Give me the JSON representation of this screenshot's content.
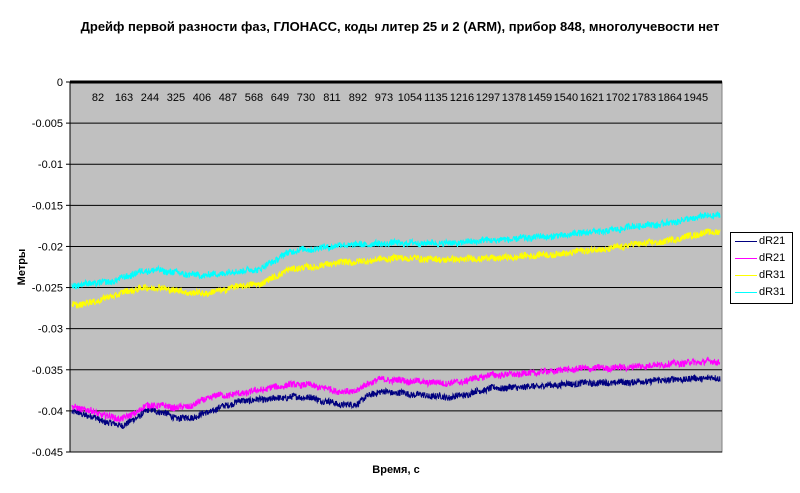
{
  "chart_data": {
    "type": "line",
    "title": "Дрейф первой разности фаз, ГЛОНАСС, коды литер 25 и 2 (ARM), прибор 848, многолучевости нет",
    "xlabel": "Время, с",
    "ylabel": "Метры",
    "ylim": [
      -0.045,
      0
    ],
    "yticks": [
      "0",
      "-0.005",
      "-0.01",
      "-0.015",
      "-0.02",
      "-0.025",
      "-0.03",
      "-0.035",
      "-0.04",
      "-0.045"
    ],
    "xticks": [
      "82",
      "163",
      "244",
      "325",
      "406",
      "487",
      "568",
      "649",
      "730",
      "811",
      "892",
      "973",
      "1054",
      "1135",
      "1216",
      "1297",
      "1378",
      "1459",
      "1540",
      "1621",
      "1702",
      "1783",
      "1864",
      "1945"
    ],
    "xlim": [
      1,
      2020
    ],
    "grid": "horizontal",
    "legend": "right",
    "background": "#c0c0c0",
    "series": [
      {
        "name": "dR21",
        "color": "#000080",
        "x": [
          1,
          156,
          249,
          341,
          558,
          712,
          867,
          959,
          1176,
          1330,
          1639,
          2020
        ],
        "values": [
          -0.0402,
          -0.0417,
          -0.0399,
          -0.0409,
          -0.0387,
          -0.0383,
          -0.0393,
          -0.0377,
          -0.0383,
          -0.0372,
          -0.0366,
          -0.036
        ]
      },
      {
        "name": "dR21",
        "color": "#ff00ff",
        "x": [
          1,
          156,
          249,
          341,
          465,
          712,
          867,
          959,
          1176,
          1330,
          1639,
          2020
        ],
        "values": [
          -0.0396,
          -0.0409,
          -0.0393,
          -0.0396,
          -0.0381,
          -0.0368,
          -0.0377,
          -0.0362,
          -0.0366,
          -0.0356,
          -0.0348,
          -0.034
        ]
      },
      {
        "name": "dR31",
        "color": "#ffff00",
        "x": [
          1,
          249,
          403,
          558,
          712,
          867,
          1021,
          1176,
          1330,
          1485,
          1639,
          1793,
          2020
        ],
        "values": [
          -0.0271,
          -0.025,
          -0.0257,
          -0.0247,
          -0.0226,
          -0.0219,
          -0.0214,
          -0.0216,
          -0.0214,
          -0.021,
          -0.0204,
          -0.0196,
          -0.0182
        ]
      },
      {
        "name": "dR31",
        "color": "#00ffff",
        "x": [
          1,
          94,
          249,
          403,
          558,
          712,
          867,
          1021,
          1176,
          1330,
          1485,
          1639,
          1793,
          2020
        ],
        "values": [
          -0.0247,
          -0.0244,
          -0.0229,
          -0.0235,
          -0.0229,
          -0.0204,
          -0.0198,
          -0.0196,
          -0.0196,
          -0.0192,
          -0.0188,
          -0.0182,
          -0.0174,
          -0.0162
        ]
      }
    ]
  }
}
